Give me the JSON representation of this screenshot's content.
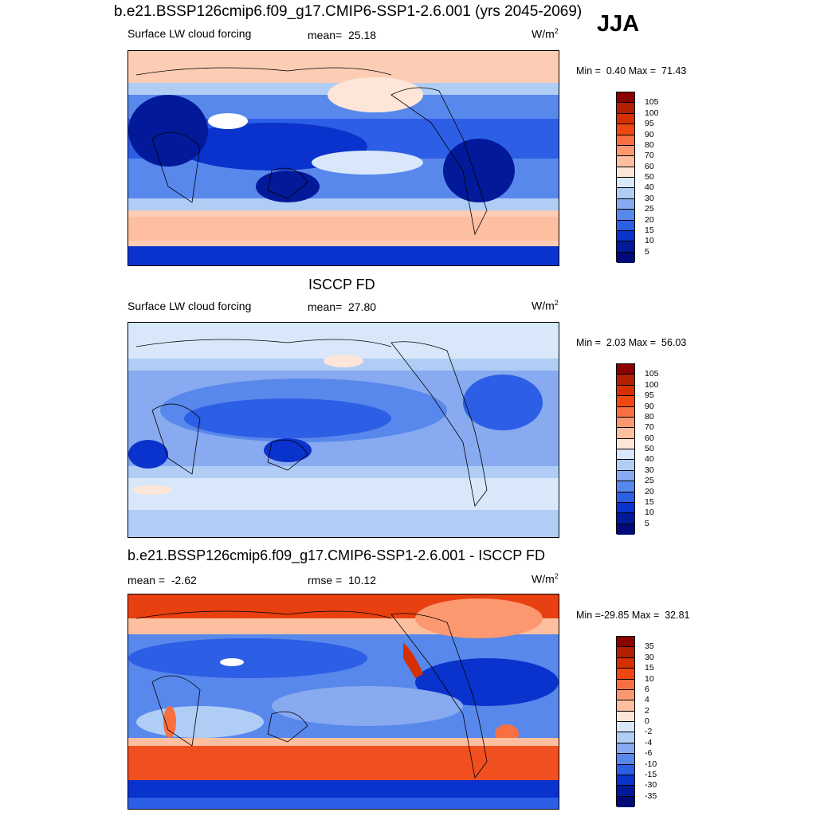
{
  "header": {
    "title": "b.e21.BSSP126cmip6.f09_g17.CMIP6-SSP1-2.6.001 (yrs 2045-2069)",
    "season": "JJA"
  },
  "panels": [
    {
      "title": "",
      "variable": "Surface LW cloud forcing",
      "stat_label": "mean=",
      "stat_value": "25.18",
      "units": "W/m",
      "units_sup": "2",
      "min_label": "Min =",
      "min_value": "0.40",
      "max_label": "Max =",
      "max_value": "71.43",
      "colorbar_labels": [
        "105",
        "100",
        "95",
        "90",
        "80",
        "70",
        "60",
        "50",
        "40",
        "30",
        "25",
        "20",
        "15",
        "10",
        "5"
      ],
      "colorbar_colors": [
        "#8b0000",
        "#b22000",
        "#d63000",
        "#ee4810",
        "#f87040",
        "#fc9870",
        "#fdbfa0",
        "#fde6d8",
        "#d8e8fa",
        "#b0cdf6",
        "#88aaf0",
        "#5888ec",
        "#2d5ee6",
        "#0a32cc",
        "#021a9a",
        "#000a78"
      ]
    },
    {
      "title": "ISCCP FD",
      "variable": "Surface LW cloud forcing",
      "stat_label": "mean=",
      "stat_value": "27.80",
      "units": "W/m",
      "units_sup": "2",
      "min_label": "Min =",
      "min_value": "2.03",
      "max_label": "Max =",
      "max_value": "56.03",
      "colorbar_labels": [
        "105",
        "100",
        "95",
        "90",
        "80",
        "70",
        "60",
        "50",
        "40",
        "30",
        "25",
        "20",
        "15",
        "10",
        "5"
      ],
      "colorbar_colors": [
        "#8b0000",
        "#b22000",
        "#d63000",
        "#ee4810",
        "#f87040",
        "#fc9870",
        "#fdbfa0",
        "#fde6d8",
        "#d8e8fa",
        "#b0cdf6",
        "#88aaf0",
        "#5888ec",
        "#2d5ee6",
        "#0a32cc",
        "#021a9a",
        "#000a78"
      ]
    },
    {
      "title": "b.e21.BSSP126cmip6.f09_g17.CMIP6-SSP1-2.6.001 - ISCCP FD",
      "variable": "",
      "mean_label": "mean =",
      "mean_value": "-2.62",
      "stat_label": "rmse =",
      "stat_value": "10.12",
      "units": "W/m",
      "units_sup": "2",
      "min_label": "Min =",
      "min_value": "-29.85",
      "max_label": "Max =",
      "max_value": "32.81",
      "colorbar_labels": [
        "35",
        "30",
        "15",
        "10",
        "6",
        "4",
        "2",
        "0",
        "-2",
        "-4",
        "-6",
        "-10",
        "-15",
        "-30",
        "-35"
      ],
      "colorbar_colors": [
        "#8b0000",
        "#b22000",
        "#d63000",
        "#ee4810",
        "#f87040",
        "#fc9870",
        "#fdbfa0",
        "#fde6d8",
        "#d8e8fa",
        "#b0cdf6",
        "#88aaf0",
        "#5888ec",
        "#2d5ee6",
        "#0a32cc",
        "#021a9a",
        "#000a78"
      ]
    }
  ]
}
